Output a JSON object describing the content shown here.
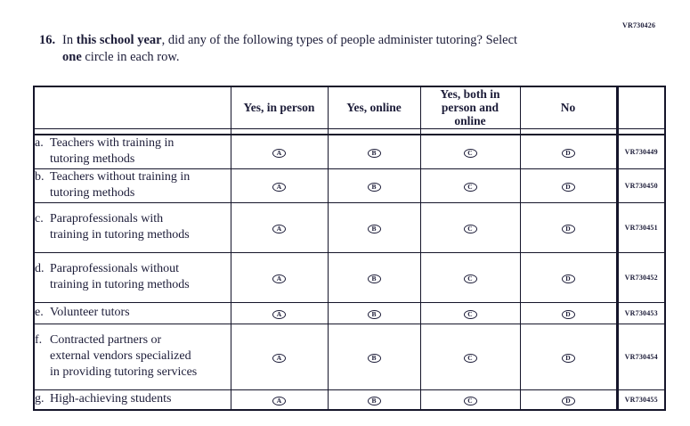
{
  "page": {
    "top_right_code": "VR730426"
  },
  "question": {
    "number": "16.",
    "segments": [
      {
        "text": "In ",
        "bold": false
      },
      {
        "text": "this school year",
        "bold": true
      },
      {
        "text": ", did any of the following types of people administer tutoring? Select",
        "bold": false
      },
      {
        "break": true
      },
      {
        "text": "one",
        "bold": true
      },
      {
        "text": " circle in each row.",
        "bold": false
      }
    ]
  },
  "table": {
    "columns": [
      "",
      "Yes, in person",
      "Yes, online",
      "Yes, both in person and online",
      "No",
      ""
    ],
    "option_letters": [
      "A",
      "B",
      "C",
      "D"
    ],
    "rows": [
      {
        "letter": "a.",
        "label": "Teachers with training in tutoring methods",
        "code": "VR730449"
      },
      {
        "letter": "b.",
        "label": "Teachers without training in tutoring methods",
        "code": "VR730450"
      },
      {
        "letter": "c.",
        "label": "Paraprofessionals with training in tutoring methods",
        "code": "VR730451"
      },
      {
        "letter": "d.",
        "label": "Paraprofessionals without training in tutoring methods",
        "code": "VR730452"
      },
      {
        "letter": "e.",
        "label": "Volunteer tutors",
        "code": "VR730453"
      },
      {
        "letter": "f.",
        "label": "Contracted partners or external vendors specialized in providing tutoring services",
        "code": "VR730454"
      },
      {
        "letter": "g.",
        "label": "High-achieving students",
        "code": "VR730455"
      }
    ]
  },
  "colors": {
    "text": "#1c1c38",
    "border": "#15152a",
    "background": "#ffffff"
  }
}
